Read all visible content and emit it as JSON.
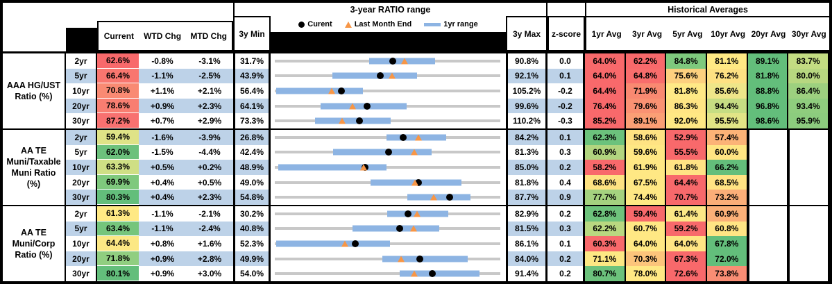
{
  "header": {
    "range_title": "3-year RATIO range",
    "historical_title": "Historical Averages",
    "columns": {
      "current": "Current",
      "wtd": "WTD Chg",
      "mtd": "MTD Chg",
      "min": "3y Min",
      "max": "3y Max",
      "z": "z-score"
    },
    "avg_columns": [
      "1yr Avg",
      "3yr Avg",
      "5yr Avg",
      "10yr Avg",
      "20yr Avg",
      "30yr Avg"
    ],
    "legend": {
      "current": "Curent",
      "last_month": "Last Month End",
      "range": "1yr range"
    }
  },
  "colors": {
    "stripe": "#BDD2E8",
    "bar_1yr": "#8DB4E3",
    "track": "#C8C8C8",
    "triangle": "#F79646",
    "dot": "#000000"
  },
  "chart_data": {
    "type": "table",
    "title": "3-year RATIO range",
    "note": "Each row is a bullet chart: gray track = 3y min-max, blue bar = 1yr range (estimated), black dot = Current, orange triangle = Last Month End. All values in percent.",
    "groups": [
      {
        "label": "AAA HG/UST Ratio (%)",
        "label_lines": [
          "AAA HG/UST",
          "Ratio (%)"
        ],
        "rows": [
          {
            "tenor": "2yr",
            "current": 62.6,
            "current_color": "#F8696B",
            "wtd": "-0.8%",
            "mtd": "-3.1%",
            "min": 31.7,
            "max": 90.8,
            "z": "0.0",
            "last_month_end": 65.7,
            "range_1yr": [
              56.5,
              73.7
            ],
            "avgs": [
              {
                "v": "64.0%",
                "c": "#F8696B"
              },
              {
                "v": "62.2%",
                "c": "#F8696B"
              },
              {
                "v": "84.8%",
                "c": "#7EC97D"
              },
              {
                "v": "81.1%",
                "c": "#FFE984"
              },
              {
                "v": "89.1%",
                "c": "#63BE7B"
              },
              {
                "v": "83.7%",
                "c": "#C3DC82"
              }
            ]
          },
          {
            "tenor": "5yr",
            "current": 66.4,
            "current_color": "#F8766F",
            "wtd": "-1.1%",
            "mtd": "-2.5%",
            "min": 43.9,
            "max": 92.1,
            "z": "0.1",
            "last_month_end": 68.9,
            "range_1yr": [
              56.2,
              74.3
            ],
            "avgs": [
              {
                "v": "64.0%",
                "c": "#F8696B"
              },
              {
                "v": "64.8%",
                "c": "#F86D6C"
              },
              {
                "v": "75.6%",
                "c": "#FDD07F"
              },
              {
                "v": "76.2%",
                "c": "#FEE183"
              },
              {
                "v": "81.8%",
                "c": "#63BE7B"
              },
              {
                "v": "80.0%",
                "c": "#B7D780"
              }
            ]
          },
          {
            "tenor": "10yr",
            "current": 70.8,
            "current_color": "#F98A73",
            "wtd": "+1.1%",
            "mtd": "+2.1%",
            "min": 56.4,
            "max": 105.2,
            "z": "-0.2",
            "last_month_end": 68.7,
            "range_1yr": [
              56.7,
              75.5
            ],
            "avgs": [
              {
                "v": "64.4%",
                "c": "#F8696B"
              },
              {
                "v": "71.9%",
                "c": "#F98971"
              },
              {
                "v": "81.8%",
                "c": "#FFE986"
              },
              {
                "v": "85.6%",
                "c": "#EFE689"
              },
              {
                "v": "88.8%",
                "c": "#63BE7B"
              },
              {
                "v": "86.4%",
                "c": "#9DD07F"
              }
            ]
          },
          {
            "tenor": "20yr",
            "current": 78.6,
            "current_color": "#F87E71",
            "wtd": "+0.9%",
            "mtd": "+2.3%",
            "min": 64.1,
            "max": 99.6,
            "z": "-0.2",
            "last_month_end": 76.3,
            "range_1yr": [
              71.3,
              84.8
            ],
            "avgs": [
              {
                "v": "76.4%",
                "c": "#F8696B"
              },
              {
                "v": "79.6%",
                "c": "#FA9273"
              },
              {
                "v": "86.3%",
                "c": "#FFE584"
              },
              {
                "v": "94.4%",
                "c": "#C6DD83"
              },
              {
                "v": "96.8%",
                "c": "#63BE7B"
              },
              {
                "v": "93.4%",
                "c": "#8FCD7E"
              }
            ]
          },
          {
            "tenor": "30yr",
            "current": 87.2,
            "current_color": "#F87170",
            "wtd": "+0.7%",
            "mtd": "+2.9%",
            "min": 73.3,
            "max": 110.2,
            "z": "-0.3",
            "last_month_end": 84.3,
            "range_1yr": [
              79.9,
              92.3
            ],
            "avgs": [
              {
                "v": "85.2%",
                "c": "#F8696B"
              },
              {
                "v": "89.1%",
                "c": "#FB9F75"
              },
              {
                "v": "92.0%",
                "c": "#FFE884"
              },
              {
                "v": "95.5%",
                "c": "#E2E486"
              },
              {
                "v": "98.6%",
                "c": "#63BE7B"
              },
              {
                "v": "95.9%",
                "c": "#8CCC7E"
              }
            ]
          }
        ]
      },
      {
        "label": "AA TE Muni/Taxable Muni Ratio (%)",
        "label_lines": [
          "AA TE",
          "Muni/Taxable",
          "Muni Ratio",
          "(%)"
        ],
        "rows": [
          {
            "tenor": "2yr",
            "current": 59.4,
            "current_color": "#DFE387",
            "wtd": "-1.6%",
            "mtd": "-3.9%",
            "min": 26.8,
            "max": 84.2,
            "z": "0.1",
            "last_month_end": 63.3,
            "range_1yr": [
              55.3,
              70.4
            ],
            "avgs": [
              {
                "v": "62.3%",
                "c": "#6CC27C"
              },
              {
                "v": "58.6%",
                "c": "#FFE383"
              },
              {
                "v": "52.9%",
                "c": "#F8696B"
              },
              {
                "v": "57.4%",
                "c": "#FCB377"
              }
            ]
          },
          {
            "tenor": "5yr",
            "current": 62.0,
            "current_color": "#6CC17C",
            "wtd": "-1.5%",
            "mtd": "-4.4%",
            "min": 42.4,
            "max": 81.3,
            "z": "0.3",
            "last_month_end": 66.4,
            "range_1yr": [
              52.5,
              69.5
            ],
            "avgs": [
              {
                "v": "60.9%",
                "c": "#B2D57F"
              },
              {
                "v": "59.6%",
                "c": "#FFE884"
              },
              {
                "v": "55.5%",
                "c": "#F8696B"
              },
              {
                "v": "60.0%",
                "c": "#FFE583"
              }
            ]
          },
          {
            "tenor": "10yr",
            "current": 63.3,
            "current_color": "#CFDF85",
            "wtd": "+0.5%",
            "mtd": "+0.2%",
            "min": 48.9,
            "max": 85.0,
            "z": "0.2",
            "last_month_end": 63.1,
            "range_1yr": [
              49.4,
              66.8
            ],
            "avgs": [
              {
                "v": "58.2%",
                "c": "#F8696B"
              },
              {
                "v": "61.9%",
                "c": "#FFE884"
              },
              {
                "v": "61.8%",
                "c": "#FFE384"
              },
              {
                "v": "66.2%",
                "c": "#63BE7B"
              }
            ]
          },
          {
            "tenor": "20yr",
            "current": 69.9,
            "current_color": "#7FC97D",
            "wtd": "+0.4%",
            "mtd": "+0.5%",
            "min": 49.0,
            "max": 81.8,
            "z": "0.4",
            "last_month_end": 69.4,
            "range_1yr": [
              62.9,
              76.1
            ],
            "avgs": [
              {
                "v": "68.6%",
                "c": "#FEE282"
              },
              {
                "v": "67.5%",
                "c": "#FFE884"
              },
              {
                "v": "64.4%",
                "c": "#F8696B"
              },
              {
                "v": "68.5%",
                "c": "#FFE383"
              }
            ]
          },
          {
            "tenor": "30yr",
            "current": 80.3,
            "current_color": "#63BE7B",
            "wtd": "+0.4%",
            "mtd": "+2.3%",
            "min": 54.8,
            "max": 87.7,
            "z": "0.9",
            "last_month_end": 78.0,
            "range_1yr": [
              74.1,
              83.3
            ],
            "avgs": [
              {
                "v": "77.7%",
                "c": "#A5D27F"
              },
              {
                "v": "74.4%",
                "c": "#FFE884"
              },
              {
                "v": "70.7%",
                "c": "#F8696B"
              },
              {
                "v": "73.2%",
                "c": "#FBAE78"
              }
            ]
          }
        ]
      },
      {
        "label": "AA TE Muni/Corp Ratio (%)",
        "label_lines": [
          "AA TE",
          "Muni/Corp",
          "Ratio (%)"
        ],
        "rows": [
          {
            "tenor": "2yr",
            "current": 61.3,
            "current_color": "#FFE984",
            "wtd": "-1.1%",
            "mtd": "-2.1%",
            "min": 30.2,
            "max": 82.9,
            "z": "0.2",
            "last_month_end": 63.4,
            "range_1yr": [
              56.4,
              70.7
            ],
            "avgs": [
              {
                "v": "62.8%",
                "c": "#6EC37C"
              },
              {
                "v": "59.4%",
                "c": "#F8696B"
              },
              {
                "v": "61.4%",
                "c": "#FBE886"
              },
              {
                "v": "60.9%",
                "c": "#FBB078"
              }
            ]
          },
          {
            "tenor": "5yr",
            "current": 63.4,
            "current_color": "#75C57C",
            "wtd": "-1.1%",
            "mtd": "-2.4%",
            "min": 40.8,
            "max": 81.5,
            "z": "0.3",
            "last_month_end": 65.8,
            "range_1yr": [
              54.8,
              70.5
            ],
            "avgs": [
              {
                "v": "62.2%",
                "c": "#B9D880"
              },
              {
                "v": "60.7%",
                "c": "#FFE884"
              },
              {
                "v": "59.2%",
                "c": "#F8696B"
              },
              {
                "v": "60.8%",
                "c": "#FFE584"
              }
            ]
          },
          {
            "tenor": "10yr",
            "current": 64.4,
            "current_color": "#FCE884",
            "wtd": "+0.8%",
            "mtd": "+1.6%",
            "min": 52.3,
            "max": 86.1,
            "z": "0.1",
            "last_month_end": 62.8,
            "range_1yr": [
              52.5,
              69.6
            ],
            "avgs": [
              {
                "v": "60.3%",
                "c": "#F8696B"
              },
              {
                "v": "64.0%",
                "c": "#FFE884"
              },
              {
                "v": "64.0%",
                "c": "#FFE584"
              },
              {
                "v": "67.8%",
                "c": "#63BE7B"
              }
            ]
          },
          {
            "tenor": "20yr",
            "current": 71.8,
            "current_color": "#90CE80",
            "wtd": "+0.9%",
            "mtd": "+2.8%",
            "min": 49.9,
            "max": 84.0,
            "z": "0.2",
            "last_month_end": 69.0,
            "range_1yr": [
              66.2,
              79.1
            ],
            "avgs": [
              {
                "v": "71.1%",
                "c": "#FDE883"
              },
              {
                "v": "70.3%",
                "c": "#FCC47B"
              },
              {
                "v": "67.3%",
                "c": "#F8696B"
              },
              {
                "v": "72.0%",
                "c": "#63BE7B"
              }
            ]
          },
          {
            "tenor": "30yr",
            "current": 80.1,
            "current_color": "#63BE7B",
            "wtd": "+0.9%",
            "mtd": "+3.0%",
            "min": 54.0,
            "max": 91.4,
            "z": "0.2",
            "last_month_end": 77.1,
            "range_1yr": [
              74.7,
              87.9
            ],
            "avgs": [
              {
                "v": "80.7%",
                "c": "#6CC27C"
              },
              {
                "v": "78.0%",
                "c": "#FFE884"
              },
              {
                "v": "72.6%",
                "c": "#F8696B"
              },
              {
                "v": "73.8%",
                "c": "#F98D74"
              }
            ]
          }
        ]
      }
    ]
  }
}
